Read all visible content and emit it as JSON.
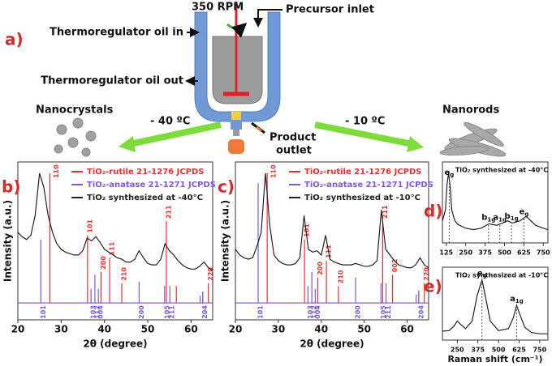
{
  "diagram": {
    "label": "a)",
    "rpm": "350 RPM",
    "precursor_inlet": "Precursor inlet",
    "oil_in": "Thermoregulator oil in",
    "oil_out": "Thermoregulator oil out",
    "left_product": "Nanocrystals",
    "left_temperature": "- 40 ºC",
    "outlet": [
      "Product",
      "outlet"
    ],
    "right_temperature": "- 10 ºC",
    "right_product": "Nanorods"
  },
  "chart_data": [
    {
      "type": "line",
      "panel": "b)",
      "xlabel": "2θ (degree)",
      "ylabel": "Intensity (a.u.)",
      "xlim": [
        20,
        65
      ],
      "xticks": [
        20,
        30,
        40,
        50,
        60
      ],
      "ylim": [
        -12,
        100
      ],
      "series": [
        {
          "name": "TiO₂-rutile 21-1276 JCPDS",
          "color": "#e8312f",
          "kind": "stick",
          "label_position": "top",
          "x": [
            27.4,
            36.1,
            39.2,
            41.2,
            44.0,
            54.3,
            56.6,
            62.7,
            64.0
          ],
          "values": [
            92,
            48,
            22,
            32,
            14,
            58,
            12,
            8,
            14
          ],
          "labels": [
            "110",
            "101",
            "200",
            "111",
            "210",
            "211",
            null,
            null,
            "220"
          ]
        },
        {
          "name": "TiO₂-anatase 21-1271 JCPDS",
          "color": "#7b5bd6",
          "kind": "stick",
          "label_position": "bottom",
          "x": [
            25.3,
            36.9,
            37.8,
            38.6,
            48.0,
            53.9,
            55.1,
            62.1,
            62.7
          ],
          "values": [
            45,
            10,
            20,
            10,
            15,
            12,
            12,
            5,
            8
          ],
          "labels": [
            "101",
            "103",
            "112",
            "004",
            "200",
            "105",
            "211",
            null,
            "204"
          ]
        },
        {
          "name": "TiO₂ synthesized at -40°C",
          "color": "#222222",
          "kind": "line",
          "x": [
            20,
            21,
            22,
            23,
            24,
            25,
            26,
            27,
            28,
            29,
            30,
            31,
            32,
            33,
            34,
            35,
            36,
            37,
            38,
            39,
            40,
            41,
            42,
            43,
            44,
            45,
            46,
            47,
            48,
            49,
            50,
            51,
            52,
            53,
            54,
            55,
            56,
            57,
            58,
            59,
            60,
            61,
            62,
            63,
            64,
            65
          ],
          "values": [
            50,
            47,
            45,
            48,
            62,
            92,
            82,
            62,
            50,
            42,
            38,
            36,
            35,
            34,
            34,
            37,
            46,
            44,
            47,
            43,
            38,
            36,
            34,
            32,
            31,
            29,
            29,
            31,
            37,
            32,
            28,
            27,
            27,
            31,
            42,
            37,
            34,
            30,
            27,
            25,
            24,
            24,
            26,
            29,
            25,
            23
          ]
        }
      ]
    },
    {
      "type": "line",
      "panel": "c)",
      "xlabel": "2θ (degree)",
      "ylabel": "Intensity (a.u.)",
      "xlim": [
        20,
        65
      ],
      "xticks": [
        20,
        30,
        40,
        50,
        60
      ],
      "ylim": [
        -12,
        100
      ],
      "series": [
        {
          "name": "TiO₂-rutile 21-1276 JCPDS",
          "color": "#e8312f",
          "kind": "stick",
          "label_position": "top",
          "x": [
            27.4,
            36.1,
            39.2,
            41.2,
            44.0,
            54.3,
            56.6,
            62.7,
            64.0
          ],
          "values": [
            92,
            45,
            18,
            30,
            12,
            58,
            20,
            8,
            14
          ],
          "labels": [
            "110",
            "101",
            "200",
            "111",
            "210",
            "211",
            "002",
            null,
            "220"
          ]
        },
        {
          "name": "TiO₂-anatase 21-1271 JCPDS",
          "color": "#7b5bd6",
          "kind": "stick",
          "label_position": "bottom",
          "x": [
            25.3,
            36.9,
            37.8,
            38.6,
            48.0,
            53.9,
            55.1,
            62.1,
            62.7
          ],
          "values": [
            85,
            12,
            22,
            10,
            18,
            14,
            14,
            6,
            9
          ],
          "labels": [
            "101",
            "103",
            "112",
            "004",
            "200",
            "105",
            "211",
            null,
            "204"
          ]
        },
        {
          "name": "TiO₂ synthesized at -10°C",
          "color": "#222222",
          "kind": "line",
          "x": [
            20,
            21,
            22,
            23,
            24,
            25,
            26,
            27,
            28,
            29,
            30,
            31,
            32,
            33,
            34,
            35,
            36,
            37,
            38,
            39,
            40,
            41,
            42,
            43,
            44,
            45,
            46,
            47,
            48,
            49,
            50,
            51,
            52,
            53,
            54,
            55,
            56,
            57,
            58,
            59,
            60,
            61,
            62,
            63,
            64,
            65
          ],
          "values": [
            38,
            34,
            32,
            31,
            32,
            40,
            50,
            92,
            55,
            34,
            30,
            28,
            27,
            27,
            28,
            32,
            62,
            38,
            36,
            37,
            34,
            48,
            31,
            29,
            28,
            27,
            27,
            27,
            28,
            27,
            26,
            26,
            27,
            30,
            66,
            38,
            34,
            30,
            27,
            26,
            25,
            25,
            27,
            32,
            27,
            25
          ]
        }
      ]
    },
    {
      "type": "line",
      "panel": "d)",
      "title": "TiO₂ synthesized at -40°C",
      "xlim": [
        100,
        780
      ],
      "xticks": [
        125,
        250,
        375,
        500,
        625,
        750
      ],
      "ylim": [
        0,
        110
      ],
      "series": [
        {
          "color": "#222222",
          "kind": "line",
          "x": [
            100,
            120,
            130,
            140,
            150,
            160,
            180,
            200,
            250,
            300,
            350,
            400,
            450,
            500,
            520,
            550,
            600,
            640,
            660,
            700,
            750,
            780
          ],
          "values": [
            30,
            45,
            80,
            95,
            75,
            45,
            30,
            25,
            20,
            18,
            20,
            26,
            24,
            28,
            30,
            27,
            30,
            36,
            32,
            24,
            20,
            18
          ]
        }
      ],
      "peaks": [
        {
          "x": 144,
          "label": "e",
          "sub": "g"
        },
        {
          "x": 397,
          "label": "b",
          "sub": "1g"
        },
        {
          "x": 470,
          "label": "a",
          "sub": "1g"
        },
        {
          "x": 545,
          "label": "b",
          "sub": "1g"
        },
        {
          "x": 625,
          "label": "e",
          "sub": "g"
        }
      ]
    },
    {
      "type": "line",
      "panel": "e)",
      "title": "TiO₂ synthesized at -10°C",
      "xlabel": "Raman shift (cm⁻¹)",
      "xlim": [
        160,
        800
      ],
      "xticks": [
        250,
        375,
        500,
        625,
        750
      ],
      "ylim": [
        0,
        115
      ],
      "series": [
        {
          "color": "#222222",
          "kind": "line",
          "x": [
            160,
            200,
            230,
            250,
            270,
            300,
            340,
            370,
            400,
            420,
            450,
            500,
            560,
            590,
            610,
            630,
            660,
            700,
            750,
            800
          ],
          "values": [
            14,
            15,
            22,
            30,
            25,
            18,
            30,
            70,
            95,
            70,
            30,
            15,
            18,
            35,
            55,
            40,
            20,
            12,
            10,
            10
          ]
        }
      ],
      "peaks": [
        {
          "x": 400,
          "label": "e",
          "sub": "g"
        },
        {
          "x": 610,
          "label": "a",
          "sub": "1g"
        }
      ]
    }
  ]
}
